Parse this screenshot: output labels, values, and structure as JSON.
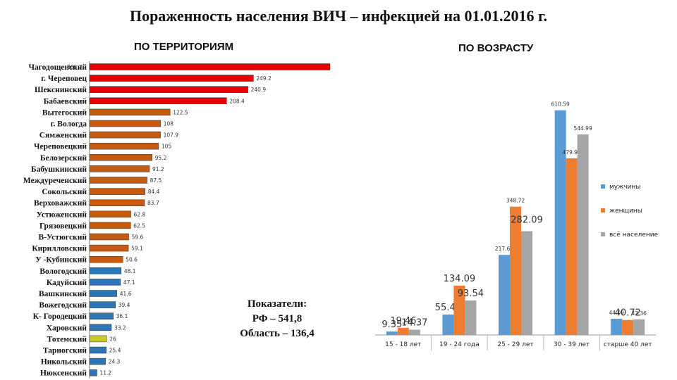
{
  "title": "Пораженность  населения  ВИЧ – инфекцией на 01.01.2016 г.",
  "subtitles": {
    "territories": "ПО ТЕРРИТОРИЯМ",
    "age": "ПО ВОЗРАСТУ"
  },
  "indicators": {
    "heading": "Показатели:",
    "russia": "РФ – 541,8",
    "region": "Область – 136,4"
  },
  "colors": {
    "red": "#e60000",
    "brown": "#c55a11",
    "blue": "#2e75b6",
    "yellow": "#c9c92a",
    "men": "#5b9bd5",
    "women": "#ed7d31",
    "all": "#a5a5a5"
  },
  "chart_data": [
    {
      "type": "bar",
      "orientation": "horizontal",
      "categories": [
        "Чагодощенский",
        "г. Череповец",
        "Шекснинский",
        "Бабаевский",
        "Вытегоский",
        "г. Вологда",
        "Сямженский",
        "Череповецкий",
        "Белозерский",
        "Бабушкинский",
        "Междуреченский",
        "Сокольский",
        "Верховажский",
        "Устюженский",
        "Грязовецкий",
        "В-Устюгский",
        "Кирилловский",
        "У -Кубинский",
        "Вологодский",
        "Кадуйский",
        "Вашкинский",
        "Вожегодский",
        "К- Городецкий",
        "Харовский",
        "Тотемский",
        "Тарногский",
        "Никольский",
        "Нюксенский"
      ],
      "values": [
        365.7,
        249.2,
        240.9,
        208.4,
        122.5,
        108,
        107.9,
        105,
        95.2,
        91.2,
        87.5,
        84.4,
        83.7,
        62.8,
        62.5,
        59.6,
        59.1,
        50.6,
        48.1,
        47.1,
        41.6,
        39.4,
        36.1,
        33.2,
        26,
        25.4,
        24.3,
        11.2
      ],
      "bar_colors": [
        "red",
        "red",
        "red",
        "red",
        "brown",
        "brown",
        "brown",
        "brown",
        "brown",
        "brown",
        "brown",
        "brown",
        "brown",
        "brown",
        "brown",
        "brown",
        "brown",
        "brown",
        "blue",
        "blue",
        "blue",
        "blue",
        "blue",
        "blue",
        "yellow",
        "blue",
        "blue",
        "blue"
      ],
      "data_labels": [
        "365.7",
        "249.2",
        "240.9",
        "208.4",
        "122.5",
        "108",
        "107.9",
        "105",
        "95.2",
        "91.2",
        "87.5",
        "84.4",
        "83.7",
        "62.8",
        "62.5",
        "59.6",
        "59.1",
        "50.6",
        "48.1",
        "47.1",
        "41.6",
        "39.4",
        "36.1",
        "33.2",
        "26",
        "25.4",
        "24.3",
        "11.2"
      ]
    },
    {
      "type": "bar",
      "categories": [
        "15 - 18 лет",
        "19 - 24 года",
        "25 - 29 лет",
        "30 - 39 лет",
        "старше 40 лет"
      ],
      "series": [
        {
          "name": "мужчины",
          "values": [
            9.35,
            55.44,
            217.63,
            610.59,
            44.09
          ]
        },
        {
          "name": "женщины",
          "values": [
            19.46,
            134.09,
            348.72,
            479.95,
            40.72
          ]
        },
        {
          "name": "всё население",
          "values": [
            14.37,
            93.54,
            282.09,
            544.99,
            42.36
          ]
        }
      ],
      "data_labels": [
        [
          "9.35",
          "55.44",
          "217.63",
          "610.59",
          "44.09"
        ],
        [
          "19.46",
          "134.09",
          "348.72",
          "479.95",
          "40.72"
        ],
        [
          "14.37",
          "93.54",
          "282.09",
          "544.99",
          "42.36"
        ]
      ],
      "legend_position": "right"
    }
  ]
}
